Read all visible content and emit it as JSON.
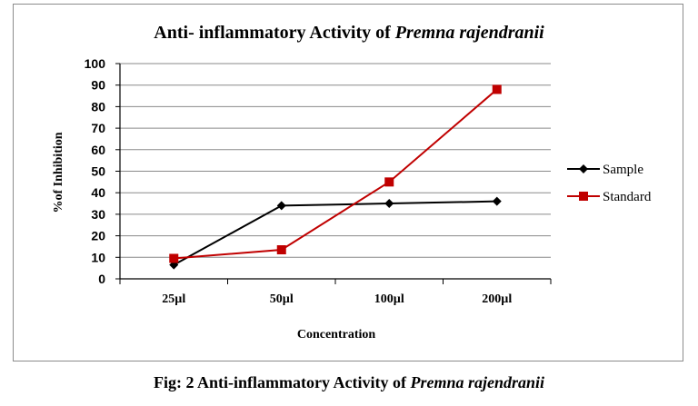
{
  "chart_data": {
    "type": "line",
    "title": "Anti- inflammatory Activity of",
    "title_italic": "Premna rajendranii",
    "xlabel": "Concentration",
    "ylabel": "%of Inhibition",
    "categories": [
      "25µl",
      "50µl",
      "100µl",
      "200µl"
    ],
    "ylim": [
      0,
      100
    ],
    "yticks": [
      0,
      10,
      20,
      30,
      40,
      50,
      60,
      70,
      80,
      90,
      100
    ],
    "grid": true,
    "legend_position": "right",
    "series": [
      {
        "name": "Sample",
        "values": [
          6.5,
          34,
          35,
          36
        ],
        "color": "#000000",
        "marker": "diamond"
      },
      {
        "name": "Standard",
        "values": [
          9.5,
          13.5,
          45,
          88
        ],
        "color": "#c00000",
        "marker": "square"
      }
    ]
  },
  "caption": {
    "text": "Fig: 2 Anti-inflammatory  Activity of",
    "italic": "Premna rajendranii"
  }
}
